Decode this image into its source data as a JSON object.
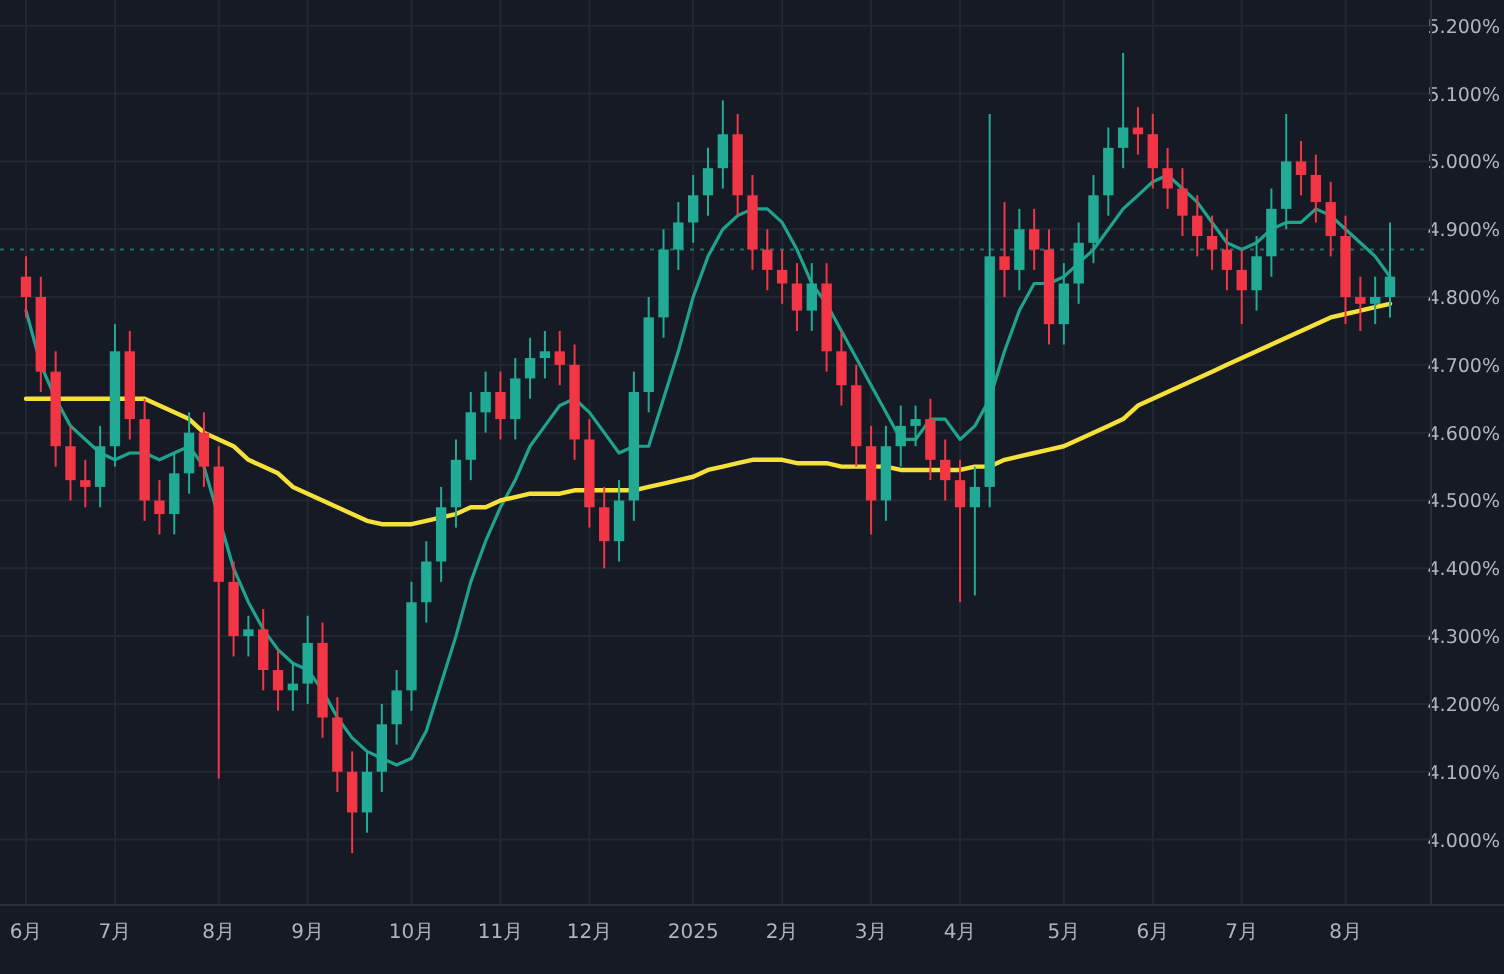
{
  "chart_data": {
    "type": "candlestick",
    "categories": [
      "6月",
      null,
      null,
      null,
      null,
      null,
      "7月",
      null,
      null,
      null,
      null,
      null,
      null,
      "8月",
      null,
      null,
      null,
      null,
      null,
      "9月",
      null,
      null,
      null,
      null,
      null,
      null,
      "10月",
      null,
      null,
      null,
      null,
      null,
      "11月",
      null,
      null,
      null,
      null,
      null,
      "12月",
      null,
      null,
      null,
      null,
      null,
      null,
      "2025",
      null,
      null,
      null,
      null,
      null,
      "2月",
      null,
      null,
      null,
      null,
      null,
      "3月",
      null,
      null,
      null,
      null,
      null,
      "4月",
      null,
      null,
      null,
      null,
      null,
      null,
      "5月",
      null,
      null,
      null,
      null,
      null,
      "6月",
      null,
      null,
      null,
      null,
      null,
      "7月",
      null,
      null,
      null,
      null,
      null,
      null,
      "8月",
      null,
      null,
      null
    ],
    "ohlc": [
      [
        4.83,
        4.86,
        4.77,
        4.8
      ],
      [
        4.8,
        4.83,
        4.66,
        4.69
      ],
      [
        4.69,
        4.72,
        4.55,
        4.58
      ],
      [
        4.58,
        4.61,
        4.5,
        4.53
      ],
      [
        4.53,
        4.56,
        4.49,
        4.52
      ],
      [
        4.52,
        4.61,
        4.49,
        4.58
      ],
      [
        4.58,
        4.76,
        4.55,
        4.72
      ],
      [
        4.72,
        4.75,
        4.59,
        4.62
      ],
      [
        4.62,
        4.65,
        4.47,
        4.5
      ],
      [
        4.5,
        4.53,
        4.45,
        4.48
      ],
      [
        4.48,
        4.57,
        4.45,
        4.54
      ],
      [
        4.54,
        4.63,
        4.51,
        4.6
      ],
      [
        4.6,
        4.63,
        4.52,
        4.55
      ],
      [
        4.55,
        4.58,
        4.09,
        4.38
      ],
      [
        4.38,
        4.41,
        4.27,
        4.3
      ],
      [
        4.3,
        4.33,
        4.27,
        4.31
      ],
      [
        4.31,
        4.34,
        4.22,
        4.25
      ],
      [
        4.25,
        4.28,
        4.19,
        4.22
      ],
      [
        4.22,
        4.26,
        4.19,
        4.23
      ],
      [
        4.23,
        4.33,
        4.2,
        4.29
      ],
      [
        4.29,
        4.32,
        4.15,
        4.18
      ],
      [
        4.18,
        4.21,
        4.07,
        4.1
      ],
      [
        4.1,
        4.13,
        3.98,
        4.04
      ],
      [
        4.04,
        4.13,
        4.01,
        4.1
      ],
      [
        4.1,
        4.2,
        4.07,
        4.17
      ],
      [
        4.17,
        4.25,
        4.14,
        4.22
      ],
      [
        4.22,
        4.38,
        4.19,
        4.35
      ],
      [
        4.35,
        4.44,
        4.32,
        4.41
      ],
      [
        4.41,
        4.52,
        4.38,
        4.49
      ],
      [
        4.49,
        4.59,
        4.46,
        4.56
      ],
      [
        4.56,
        4.66,
        4.53,
        4.63
      ],
      [
        4.63,
        4.69,
        4.6,
        4.66
      ],
      [
        4.66,
        4.69,
        4.59,
        4.62
      ],
      [
        4.62,
        4.71,
        4.59,
        4.68
      ],
      [
        4.68,
        4.74,
        4.65,
        4.71
      ],
      [
        4.71,
        4.75,
        4.68,
        4.72
      ],
      [
        4.72,
        4.75,
        4.67,
        4.7
      ],
      [
        4.7,
        4.73,
        4.56,
        4.59
      ],
      [
        4.59,
        4.62,
        4.46,
        4.49
      ],
      [
        4.49,
        4.52,
        4.4,
        4.44
      ],
      [
        4.44,
        4.53,
        4.41,
        4.5
      ],
      [
        4.5,
        4.69,
        4.47,
        4.66
      ],
      [
        4.66,
        4.8,
        4.63,
        4.77
      ],
      [
        4.77,
        4.9,
        4.74,
        4.87
      ],
      [
        4.87,
        4.94,
        4.84,
        4.91
      ],
      [
        4.91,
        4.98,
        4.88,
        4.95
      ],
      [
        4.95,
        5.02,
        4.92,
        4.99
      ],
      [
        4.99,
        5.09,
        4.96,
        5.04
      ],
      [
        5.04,
        5.07,
        4.92,
        4.95
      ],
      [
        4.95,
        4.98,
        4.84,
        4.87
      ],
      [
        4.87,
        4.9,
        4.81,
        4.84
      ],
      [
        4.84,
        4.87,
        4.79,
        4.82
      ],
      [
        4.82,
        4.85,
        4.75,
        4.78
      ],
      [
        4.78,
        4.85,
        4.75,
        4.82
      ],
      [
        4.82,
        4.85,
        4.69,
        4.72
      ],
      [
        4.72,
        4.75,
        4.64,
        4.67
      ],
      [
        4.67,
        4.7,
        4.55,
        4.58
      ],
      [
        4.58,
        4.61,
        4.45,
        4.5
      ],
      [
        4.5,
        4.61,
        4.47,
        4.58
      ],
      [
        4.58,
        4.64,
        4.55,
        4.61
      ],
      [
        4.61,
        4.64,
        4.58,
        4.62
      ],
      [
        4.62,
        4.65,
        4.53,
        4.56
      ],
      [
        4.56,
        4.59,
        4.5,
        4.53
      ],
      [
        4.53,
        4.56,
        4.35,
        4.49
      ],
      [
        4.49,
        4.55,
        4.36,
        4.52
      ],
      [
        4.52,
        5.07,
        4.49,
        4.86
      ],
      [
        4.86,
        4.94,
        4.8,
        4.84
      ],
      [
        4.84,
        4.93,
        4.81,
        4.9
      ],
      [
        4.9,
        4.93,
        4.84,
        4.87
      ],
      [
        4.87,
        4.9,
        4.73,
        4.76
      ],
      [
        4.76,
        4.85,
        4.73,
        4.82
      ],
      [
        4.82,
        4.91,
        4.79,
        4.88
      ],
      [
        4.88,
        4.98,
        4.85,
        4.95
      ],
      [
        4.95,
        5.05,
        4.92,
        5.02
      ],
      [
        5.02,
        5.16,
        4.99,
        5.05
      ],
      [
        5.05,
        5.08,
        5.01,
        5.04
      ],
      [
        5.04,
        5.07,
        4.96,
        4.99
      ],
      [
        4.99,
        5.02,
        4.93,
        4.96
      ],
      [
        4.96,
        4.99,
        4.89,
        4.92
      ],
      [
        4.92,
        4.95,
        4.86,
        4.89
      ],
      [
        4.89,
        4.92,
        4.84,
        4.87
      ],
      [
        4.87,
        4.9,
        4.81,
        4.84
      ],
      [
        4.84,
        4.87,
        4.76,
        4.81
      ],
      [
        4.81,
        4.89,
        4.78,
        4.86
      ],
      [
        4.86,
        4.96,
        4.83,
        4.93
      ],
      [
        4.93,
        5.07,
        4.9,
        5.0
      ],
      [
        5.0,
        5.03,
        4.95,
        4.98
      ],
      [
        4.98,
        5.01,
        4.91,
        4.94
      ],
      [
        4.94,
        4.97,
        4.86,
        4.89
      ],
      [
        4.89,
        4.92,
        4.76,
        4.8
      ],
      [
        4.8,
        4.83,
        4.75,
        4.79
      ],
      [
        4.79,
        4.83,
        4.76,
        4.8
      ],
      [
        4.8,
        4.91,
        4.77,
        4.83
      ]
    ],
    "colors": [
      "#f23645",
      "#f23645",
      "#f23645",
      "#f23645",
      "#f23645",
      "#22ab94",
      "#22ab94",
      "#f23645",
      "#f23645",
      "#f23645",
      "#22ab94",
      "#22ab94",
      "#f23645",
      "#f23645",
      "#f23645",
      "#22ab94",
      "#f23645",
      "#f23645",
      "#22ab94",
      "#22ab94",
      "#f23645",
      "#f23645",
      "#f23645",
      "#22ab94",
      "#22ab94",
      "#22ab94",
      "#22ab94",
      "#22ab94",
      "#22ab94",
      "#22ab94",
      "#22ab94",
      "#22ab94",
      "#f23645",
      "#22ab94",
      "#22ab94",
      "#22ab94",
      "#f23645",
      "#f23645",
      "#f23645",
      "#f23645",
      "#22ab94",
      "#22ab94",
      "#22ab94",
      "#22ab94",
      "#22ab94",
      "#22ab94",
      "#22ab94",
      "#22ab94",
      "#f23645",
      "#f23645",
      "#f23645",
      "#f23645",
      "#f23645",
      "#22ab94",
      "#f23645",
      "#f23645",
      "#f23645",
      "#f23645",
      "#22ab94",
      "#22ab94",
      "#22ab94",
      "#f23645",
      "#f23645",
      "#f23645",
      "#22ab94",
      "#22ab94",
      "#f23645",
      "#22ab94",
      "#f23645",
      "#f23645",
      "#22ab94",
      "#22ab94",
      "#22ab94",
      "#22ab94",
      "#22ab94",
      "#f23645",
      "#f23645",
      "#f23645",
      "#f23645",
      "#f23645",
      "#f23645",
      "#f23645",
      "#f23645",
      "#22ab94",
      "#22ab94",
      "#22ab94",
      "#f23645",
      "#f23645",
      "#f23645",
      "#f23645",
      "#f23645",
      "#22ab94",
      "#22ab94"
    ],
    "series": [
      {
        "type": "line",
        "color": "#1fa38f",
        "values": [
          4.78,
          4.7,
          4.65,
          4.61,
          4.59,
          4.57,
          4.56,
          4.57,
          4.57,
          4.56,
          4.57,
          4.58,
          4.55,
          null,
          4.4,
          4.35,
          4.31,
          4.28,
          4.26,
          4.25,
          4.22,
          4.18,
          4.15,
          4.13,
          4.12,
          4.11,
          4.12,
          4.16,
          4.23,
          4.3,
          4.38,
          4.44,
          4.49,
          4.53,
          4.58,
          4.61,
          4.64,
          4.65,
          4.63,
          4.6,
          4.57,
          4.58,
          4.58,
          4.65,
          4.72,
          4.8,
          4.86,
          4.9,
          4.92,
          4.93,
          4.93,
          4.91,
          4.87,
          4.82,
          4.79,
          4.75,
          4.71,
          4.67,
          4.63,
          4.59,
          4.59,
          4.62,
          4.62,
          4.59,
          4.61,
          4.65,
          4.72,
          4.78,
          4.82,
          4.82,
          4.83,
          4.85,
          4.87,
          4.9,
          4.93,
          4.95,
          4.97,
          4.98,
          4.96,
          4.94,
          4.91,
          4.88,
          4.87,
          4.88,
          4.9,
          4.91,
          4.91,
          4.93,
          4.92,
          4.9,
          4.88,
          4.86,
          4.83
        ]
      },
      {
        "type": "line",
        "color": "#f5e13a",
        "values": [
          4.65,
          4.65,
          4.65,
          4.65,
          4.65,
          4.65,
          4.65,
          4.65,
          4.65,
          4.64,
          4.63,
          4.62,
          4.6,
          4.59,
          4.58,
          4.56,
          4.55,
          4.54,
          4.52,
          4.51,
          4.5,
          4.49,
          4.48,
          4.47,
          4.465,
          4.465,
          4.465,
          4.47,
          4.475,
          4.48,
          4.49,
          4.49,
          4.5,
          4.505,
          4.51,
          4.51,
          4.51,
          4.515,
          4.515,
          4.515,
          4.515,
          4.515,
          4.52,
          4.525,
          4.53,
          4.535,
          4.545,
          4.55,
          4.555,
          4.56,
          4.56,
          4.56,
          4.555,
          4.555,
          4.555,
          4.55,
          4.55,
          4.55,
          4.55,
          4.545,
          4.545,
          4.545,
          4.545,
          4.545,
          4.55,
          4.55,
          4.56,
          4.565,
          4.57,
          4.575,
          4.58,
          4.59,
          4.6,
          4.61,
          4.62,
          4.64,
          4.65,
          4.66,
          4.67,
          4.68,
          4.69,
          4.7,
          4.71,
          4.72,
          4.73,
          4.74,
          4.75,
          4.76,
          4.77,
          4.775,
          4.78,
          4.785,
          4.79
        ]
      }
    ],
    "ylim": [
      3.905,
      5.238
    ],
    "yticks": [
      {
        "value": 4.0,
        "label": "4.000%"
      },
      {
        "value": 4.1,
        "label": "4.100%"
      },
      {
        "value": 4.2,
        "label": "4.200%"
      },
      {
        "value": 4.3,
        "label": "4.300%"
      },
      {
        "value": 4.4,
        "label": "4.400%"
      },
      {
        "value": 4.5,
        "label": "4.500%"
      },
      {
        "value": 4.6,
        "label": "4.600%"
      },
      {
        "value": 4.7,
        "label": "4.700%"
      },
      {
        "value": 4.8,
        "label": "4.800%"
      },
      {
        "value": 4.9,
        "label": "4.900%"
      },
      {
        "value": 5.0,
        "label": "5.000%"
      },
      {
        "value": 5.1,
        "label": "5.100%"
      },
      {
        "value": 5.2,
        "label": "5.200%"
      }
    ],
    "ref_lines": [
      {
        "axis": "y",
        "value": 4.87,
        "color": "#1e6f66",
        "line_style": "dotted"
      }
    ],
    "grid": true
  }
}
